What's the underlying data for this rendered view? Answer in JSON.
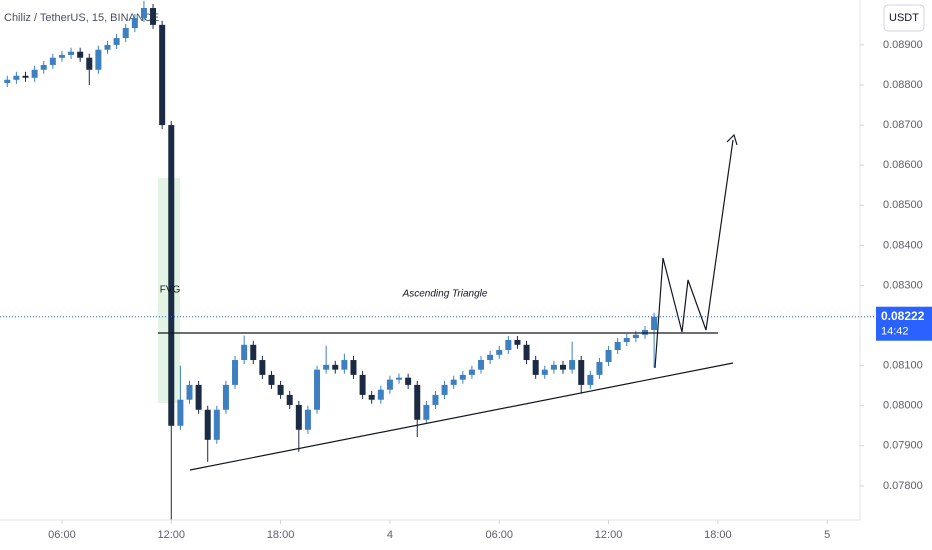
{
  "chart_data": {
    "type": "candlestick",
    "title": "Chiliz / TetherUS, 15, BINANCE",
    "currency": "USDT",
    "annotations": [
      "FVG",
      "Ascending Triangle"
    ],
    "up_color": "#3d7fbf",
    "down_color": "#1c2b44",
    "x": [
      3,
      3.5,
      4,
      4.5,
      5,
      5.5,
      6,
      6.5,
      7,
      7.5,
      8,
      8.5,
      9,
      9.5,
      10,
      10.5,
      11,
      11.5,
      12,
      12.5,
      13,
      13.5,
      14,
      14.5,
      15,
      15.5,
      16,
      16.5,
      17,
      17.5,
      18,
      18.5,
      19,
      19.5,
      20,
      20.5,
      21,
      21.5,
      22,
      22.5,
      23,
      23.5,
      24,
      24.5,
      25,
      25.5,
      26,
      26.5,
      27,
      27.5,
      28,
      28.5,
      29,
      29.5,
      30,
      30.5,
      31,
      31.5,
      32,
      32.5,
      33,
      33.5,
      34,
      34.5,
      35,
      35.5,
      36,
      36.5,
      37,
      37.5,
      38,
      38.5
    ],
    "open": [
      0.08805,
      0.08813,
      0.08823,
      0.08818,
      0.08838,
      0.0885,
      0.08868,
      0.08875,
      0.08883,
      0.08868,
      0.08838,
      0.08888,
      0.089,
      0.08917,
      0.08942,
      0.08967,
      0.08992,
      0.0895,
      0.087,
      0.0795,
      0.08015,
      0.08052,
      0.0799,
      0.07915,
      0.0799,
      0.08052,
      0.08114,
      0.08152,
      0.08114,
      0.08077,
      0.08052,
      0.08027,
      0.08002,
      0.0794,
      0.0799,
      0.0809,
      0.08102,
      0.0809,
      0.08114,
      0.08077,
      0.08027,
      0.08015,
      0.0804,
      0.08065,
      0.0807,
      0.08052,
      0.07965,
      0.08002,
      0.08027,
      0.08052,
      0.08065,
      0.08077,
      0.0809,
      0.08114,
      0.08127,
      0.08139,
      0.08164,
      0.08152,
      0.08114,
      0.08077,
      0.0809,
      0.08102,
      0.0809,
      0.08114,
      0.08052,
      0.08077,
      0.08109,
      0.08139,
      0.08159,
      0.08169,
      0.08177,
      0.08189
    ],
    "high": [
      0.08823,
      0.08833,
      0.08833,
      0.08848,
      0.0886,
      0.08878,
      0.08885,
      0.08893,
      0.08893,
      0.08878,
      0.08898,
      0.0891,
      0.08927,
      0.08952,
      0.08977,
      0.0901,
      0.09002,
      0.0896,
      0.0871,
      0.081,
      0.08062,
      0.08062,
      0.08,
      0.08,
      0.08062,
      0.08124,
      0.08175,
      0.08162,
      0.08124,
      0.08087,
      0.08062,
      0.08037,
      0.08012,
      0.08,
      0.081,
      0.0815,
      0.08112,
      0.0813,
      0.08124,
      0.08087,
      0.08037,
      0.0805,
      0.08075,
      0.0808,
      0.0808,
      0.08062,
      0.08012,
      0.08037,
      0.08062,
      0.08075,
      0.08087,
      0.081,
      0.08124,
      0.08137,
      0.08149,
      0.08174,
      0.08174,
      0.08162,
      0.08124,
      0.081,
      0.08112,
      0.08112,
      0.0816,
      0.08124,
      0.08087,
      0.08119,
      0.08149,
      0.08169,
      0.08179,
      0.08187,
      0.08199,
      0.08232
    ],
    "low": [
      0.08795,
      0.08803,
      0.08808,
      0.08808,
      0.08828,
      0.0884,
      0.08858,
      0.08865,
      0.08858,
      0.088,
      0.08828,
      0.08878,
      0.0889,
      0.08907,
      0.08932,
      0.08957,
      0.0894,
      0.0869,
      0.07715,
      0.0794,
      0.08005,
      0.0798,
      0.0786,
      0.07905,
      0.0798,
      0.08042,
      0.08104,
      0.08104,
      0.08067,
      0.08042,
      0.08017,
      0.07992,
      0.07885,
      0.0793,
      0.0798,
      0.0808,
      0.0808,
      0.0808,
      0.08067,
      0.08017,
      0.08005,
      0.08005,
      0.0803,
      0.08055,
      0.08042,
      0.07922,
      0.07955,
      0.07992,
      0.08017,
      0.08042,
      0.08055,
      0.08067,
      0.0808,
      0.08104,
      0.08117,
      0.08129,
      0.08142,
      0.08104,
      0.08067,
      0.08067,
      0.0808,
      0.0808,
      0.0808,
      0.0803,
      0.08042,
      0.08067,
      0.08099,
      0.08129,
      0.08149,
      0.08159,
      0.08167,
      0.08095
    ],
    "close": [
      0.08813,
      0.08823,
      0.08818,
      0.08838,
      0.0885,
      0.08868,
      0.08875,
      0.08883,
      0.08868,
      0.08838,
      0.08888,
      0.089,
      0.08917,
      0.08942,
      0.08967,
      0.08992,
      0.0895,
      0.087,
      0.0795,
      0.08015,
      0.08052,
      0.0799,
      0.07915,
      0.0799,
      0.08052,
      0.08114,
      0.08152,
      0.08114,
      0.08077,
      0.08052,
      0.08027,
      0.08002,
      0.0794,
      0.0799,
      0.0809,
      0.08102,
      0.0809,
      0.08114,
      0.08077,
      0.08027,
      0.08015,
      0.0804,
      0.08065,
      0.0807,
      0.08052,
      0.07965,
      0.08002,
      0.08027,
      0.08052,
      0.08065,
      0.08077,
      0.0809,
      0.08114,
      0.08127,
      0.08139,
      0.08164,
      0.08152,
      0.08114,
      0.08077,
      0.0809,
      0.08102,
      0.0809,
      0.08114,
      0.08052,
      0.08077,
      0.08109,
      0.08139,
      0.08159,
      0.08169,
      0.08177,
      0.08189,
      0.08222
    ],
    "xlim": [
      2.6,
      49.8
    ],
    "xticks": [
      {
        "value": 6,
        "label": "06:00"
      },
      {
        "value": 12,
        "label": "12:00"
      },
      {
        "value": 18,
        "label": "18:00"
      },
      {
        "value": 24,
        "label": "4"
      },
      {
        "value": 30,
        "label": "06:00"
      },
      {
        "value": 36,
        "label": "12:00"
      },
      {
        "value": 42,
        "label": "18:00"
      },
      {
        "value": 48,
        "label": "5"
      }
    ],
    "ylim": [
      0.07715,
      0.09012
    ],
    "yticks": [
      {
        "value": 0.089,
        "label": "0.08900"
      },
      {
        "value": 0.088,
        "label": "0.08800"
      },
      {
        "value": 0.087,
        "label": "0.08700"
      },
      {
        "value": 0.086,
        "label": "0.08600"
      },
      {
        "value": 0.085,
        "label": "0.08500"
      },
      {
        "value": 0.084,
        "label": "0.08400"
      },
      {
        "value": 0.083,
        "label": "0.08300"
      },
      {
        "value": 0.081,
        "label": "0.08100"
      },
      {
        "value": 0.08,
        "label": "0.08000"
      },
      {
        "value": 0.079,
        "label": "0.07900"
      },
      {
        "value": 0.078,
        "label": "0.07800"
      }
    ],
    "last_price": {
      "value": 0.08222,
      "label": "0.08222"
    },
    "countdown": "14:42",
    "price_line_color": "#2962ff"
  }
}
